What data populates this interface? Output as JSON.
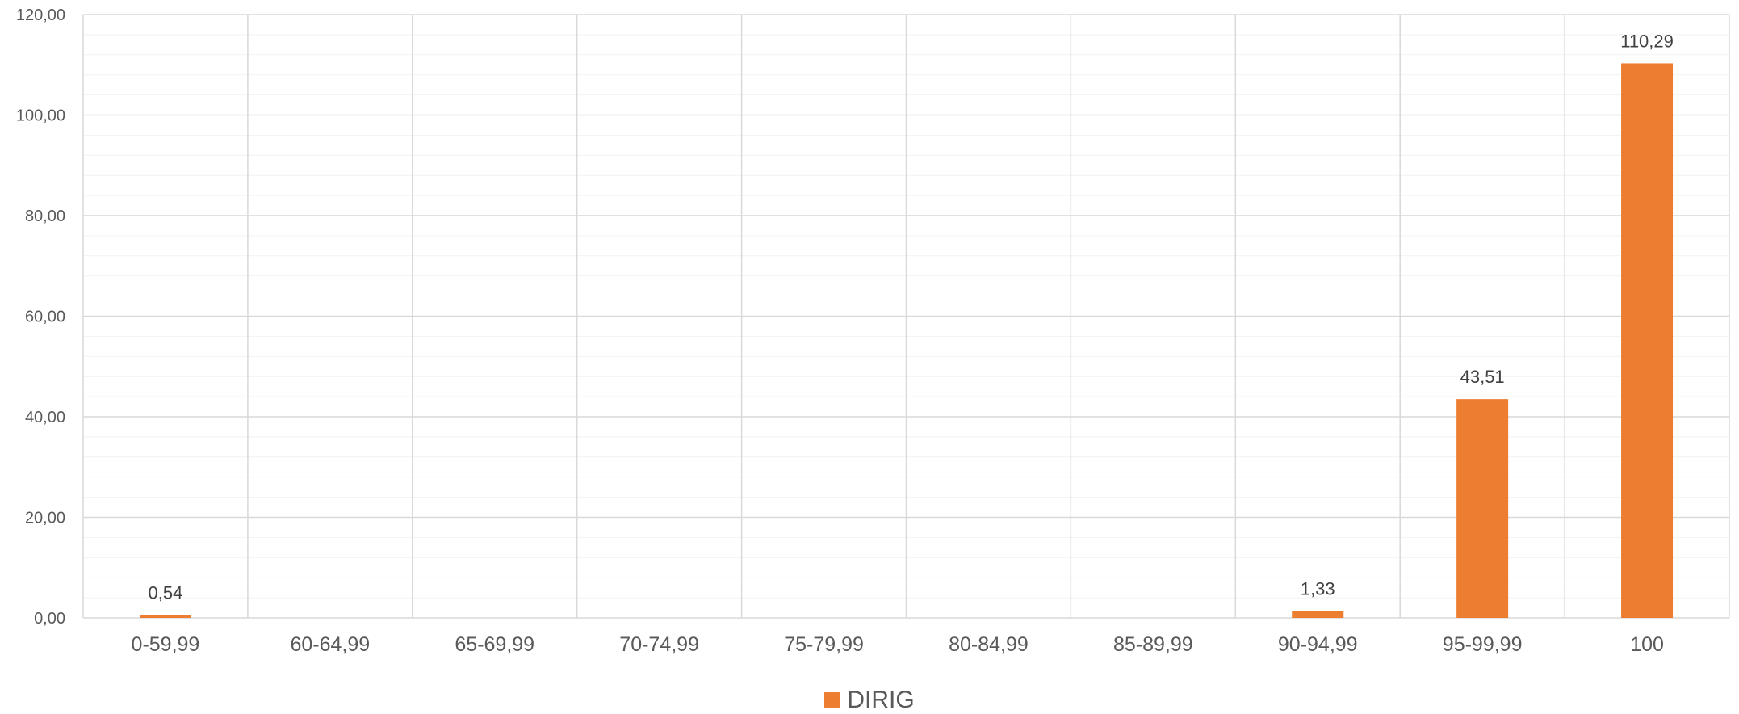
{
  "chart_data": {
    "type": "bar",
    "categories": [
      "0-59,99",
      "60-64,99",
      "65-69,99",
      "70-74,99",
      "75-79,99",
      "80-84,99",
      "85-89,99",
      "90-94,99",
      "95-99,99",
      "100"
    ],
    "series": [
      {
        "name": "DIRIG",
        "color": "#ED7D31",
        "values": [
          0.54,
          0,
          0,
          0,
          0,
          0,
          0,
          1.33,
          43.51,
          110.29
        ],
        "data_labels": [
          "0,54",
          "",
          "",
          "",
          "",
          "",
          "",
          "1,33",
          "43,51",
          "110,29"
        ]
      }
    ],
    "ylim": [
      0,
      120
    ],
    "yticks": [
      0,
      20,
      40,
      60,
      80,
      100,
      120
    ],
    "ytick_labels": [
      "0,00",
      "20,00",
      "40,00",
      "60,00",
      "80,00",
      "100,00",
      "120,00"
    ],
    "title": "",
    "xlabel": "",
    "ylabel": "",
    "grid": true,
    "legend_position": "bottom"
  }
}
